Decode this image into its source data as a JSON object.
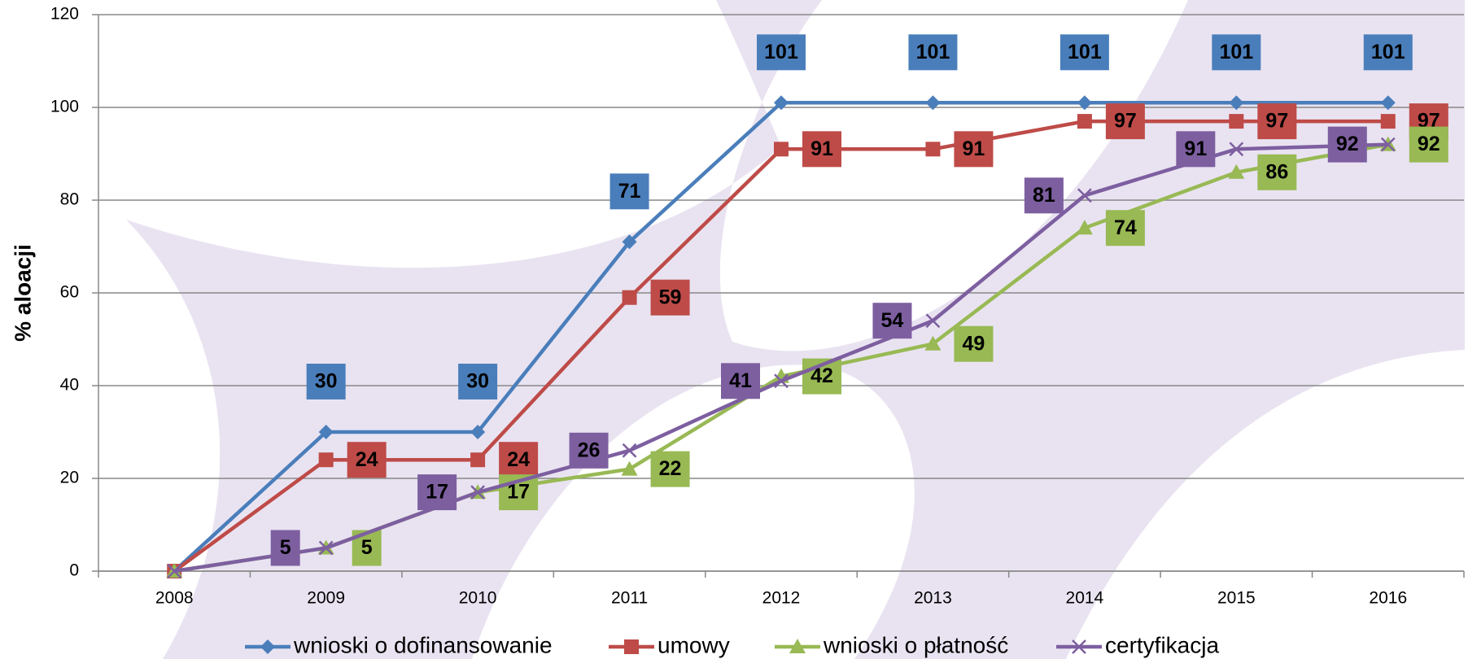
{
  "chart_data": {
    "type": "line",
    "y_label": "% aloacji",
    "categories": [
      "2008",
      "2009",
      "2010",
      "2011",
      "2012",
      "2013",
      "2014",
      "2015",
      "2016"
    ],
    "ylim": [
      0,
      120
    ],
    "yticks": [
      0,
      20,
      40,
      60,
      80,
      100,
      120
    ],
    "grid": true,
    "legend": "bottom",
    "series": [
      {
        "name": "wnioski o dofinansowanie",
        "color": "#4a7ebb",
        "marker": "diamond",
        "label_position": "above",
        "values": [
          0,
          30,
          30,
          71,
          101,
          101,
          101,
          101,
          101
        ],
        "value_labels": [
          null,
          "30",
          "30",
          "71",
          "101",
          "101",
          "101",
          "101",
          "101"
        ]
      },
      {
        "name": "umowy",
        "color": "#be4b48",
        "marker": "square",
        "label_position": "right",
        "values": [
          0,
          24,
          24,
          59,
          91,
          91,
          97,
          97,
          97
        ],
        "value_labels": [
          null,
          "24",
          "24",
          "59",
          "91",
          "91",
          "97",
          "97",
          "97"
        ]
      },
      {
        "name": "wnioski o płatność",
        "color": "#98b954",
        "marker": "triangle",
        "label_position": "right",
        "values": [
          0,
          5,
          17,
          22,
          42,
          49,
          74,
          86,
          92
        ],
        "value_labels": [
          null,
          "5",
          "17",
          "22",
          "42",
          "49",
          "74",
          "86",
          "92"
        ]
      },
      {
        "name": "certyfikacja",
        "color": "#7d5fa0",
        "marker": "x",
        "label_position": "left",
        "values": [
          0,
          5,
          17,
          26,
          41,
          54,
          81,
          91,
          92
        ],
        "value_labels": [
          null,
          "5",
          "17",
          "26",
          "41",
          "54",
          "81",
          "91",
          "92"
        ]
      }
    ]
  }
}
